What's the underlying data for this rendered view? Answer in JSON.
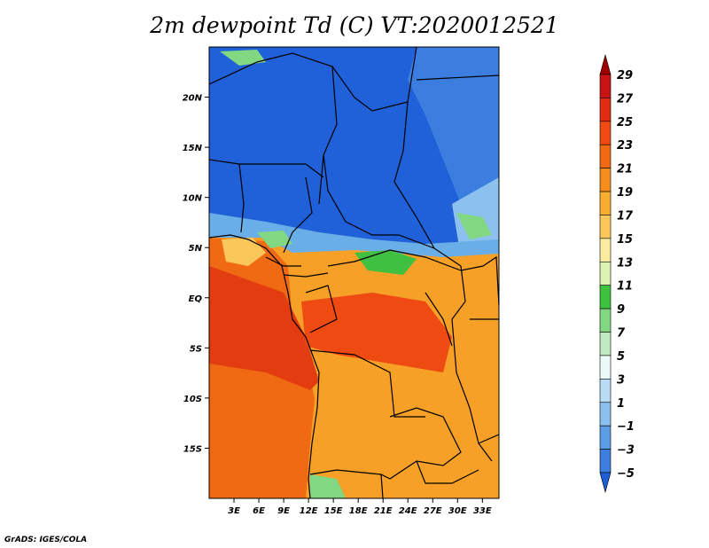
{
  "title": "2m dewpoint Td (C) VT:2020012521",
  "credit": "GrADS: IGES/COLA",
  "map": {
    "lon_range": [
      0,
      35
    ],
    "lat_range": [
      -20,
      25
    ],
    "lon_ticks": [
      {
        "lon": 3,
        "label": "3E"
      },
      {
        "lon": 6,
        "label": "6E"
      },
      {
        "lon": 9,
        "label": "9E"
      },
      {
        "lon": 12,
        "label": "12E"
      },
      {
        "lon": 15,
        "label": "15E"
      },
      {
        "lon": 18,
        "label": "18E"
      },
      {
        "lon": 21,
        "label": "21E"
      },
      {
        "lon": 24,
        "label": "24E"
      },
      {
        "lon": 27,
        "label": "27E"
      },
      {
        "lon": 30,
        "label": "30E"
      },
      {
        "lon": 33,
        "label": "33E"
      }
    ],
    "lat_ticks": [
      {
        "lat": 20,
        "label": "20N"
      },
      {
        "lat": 15,
        "label": "15N"
      },
      {
        "lat": 10,
        "label": "10N"
      },
      {
        "lat": 5,
        "label": "5N"
      },
      {
        "lat": 0,
        "label": "EQ"
      },
      {
        "lat": -5,
        "label": "5S"
      },
      {
        "lat": -10,
        "label": "10S"
      },
      {
        "lat": -15,
        "label": "15S"
      }
    ]
  },
  "colorbar": {
    "levels": [
      "29",
      "27",
      "25",
      "23",
      "21",
      "19",
      "17",
      "15",
      "13",
      "11",
      "9",
      "7",
      "5",
      "3",
      "1",
      "−1",
      "−3",
      "−5"
    ],
    "colors": [
      "#a00000",
      "#c81414",
      "#e02c10",
      "#ee4a12",
      "#f06a14",
      "#f58c1c",
      "#f8ac30",
      "#fac85a",
      "#faec9e",
      "#dcf2b0",
      "#3cc23c",
      "#82d882",
      "#bfeabf",
      "#eafaf6",
      "#b8dcf4",
      "#8cc0ee",
      "#5c9ee6",
      "#3c7ee0",
      "#1e5ed6"
    ]
  },
  "colors": {
    "dry_blue": "#2060d8",
    "ocean_orange": "#f06a14",
    "warm_red": "#e23c10",
    "land_orange": "#f6a028",
    "green": "#40c040",
    "light_blue": "#6aaee8"
  }
}
